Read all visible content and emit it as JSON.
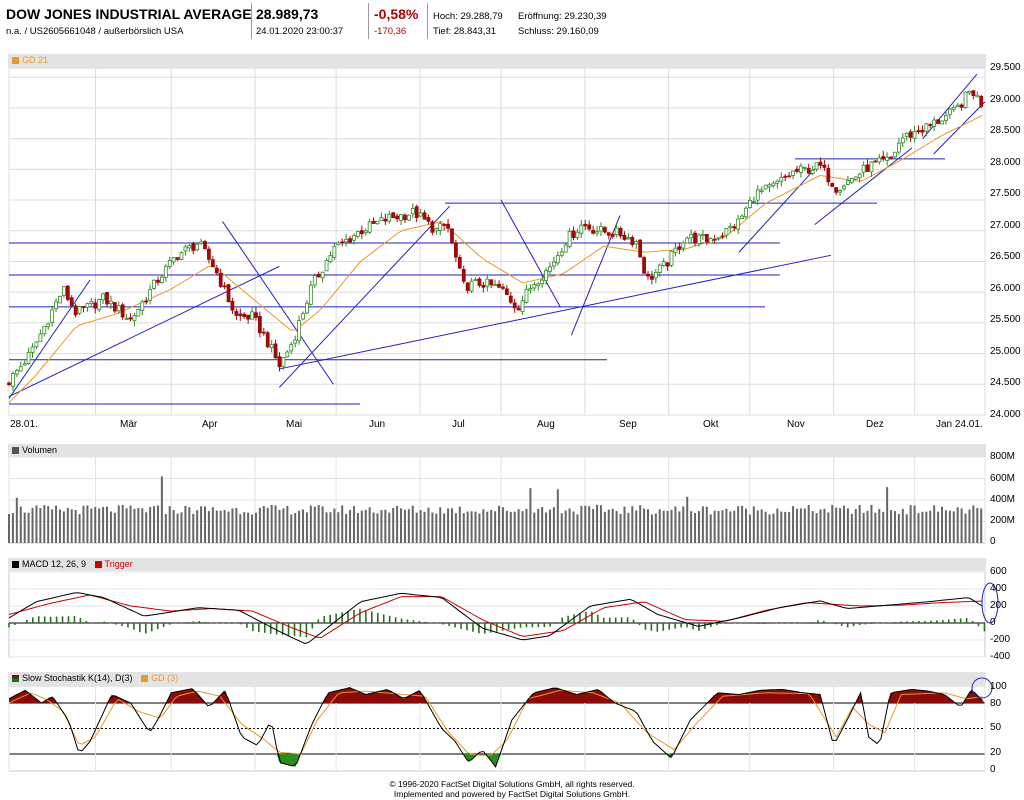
{
  "header": {
    "title": "DOW JONES INDUSTRIAL AVERAGE",
    "subtitle": "n.a. / US2605661048 / außerbörslich USA",
    "price": "28.989,73",
    "datetime": "24.01.2020 23:00:37",
    "change_pct": "-0,58%",
    "change_abs": "-170,36",
    "high_label": "Hoch: 29.288,79",
    "low_label": "Tief: 28.843,31",
    "open_label": "Eröffnung: 29.230,39",
    "close_label": "Schluss: 29.160,09"
  },
  "colors": {
    "up": "#2e8b22",
    "down": "#9e0b0b",
    "ma": "#e69a28",
    "trend": "#2222bb",
    "macd": "#000000",
    "trigger": "#cc0000",
    "hist": "#2a6e22",
    "stoch_fill": "#8b0a0a"
  },
  "footer": {
    "line1": "© 1996-2020 FactSet Digital Solutions GmbH, all rights reserved.",
    "line2": "Implemented and powered by FactSet Digital Solutions GmbH."
  },
  "chart_data": [
    {
      "type": "candlestick",
      "legend": "GD 21",
      "x_tick_labels": [
        "28.01.",
        "Mär",
        "Apr",
        "Mai",
        "Jun",
        "Jul",
        "Aug",
        "Sep",
        "Okt",
        "Nov",
        "Dez",
        "Jan 24.01."
      ],
      "y_ticks": [
        29500,
        29000,
        28500,
        28000,
        27500,
        27000,
        26500,
        26000,
        25500,
        25000,
        24500,
        24000
      ],
      "y_tick_labels": [
        "29.500",
        "29.000",
        "28.500",
        "28.000",
        "27.500",
        "27.000",
        "26.500",
        "26.000",
        "25.500",
        "25.000",
        "24.500",
        "24.000"
      ],
      "ylim": [
        24000,
        29650
      ],
      "x_range_days": [
        0,
        361
      ],
      "anchors": [
        [
          0,
          24550
        ],
        [
          8,
          25000
        ],
        [
          20,
          26050
        ],
        [
          25,
          25650
        ],
        [
          35,
          25900
        ],
        [
          45,
          25550
        ],
        [
          55,
          26200
        ],
        [
          62,
          26600
        ],
        [
          70,
          26800
        ],
        [
          76,
          26400
        ],
        [
          84,
          25600
        ],
        [
          90,
          25600
        ],
        [
          95,
          25250
        ],
        [
          100,
          24800
        ],
        [
          105,
          25200
        ],
        [
          112,
          26100
        ],
        [
          120,
          26700
        ],
        [
          130,
          27000
        ],
        [
          140,
          27200
        ],
        [
          150,
          27300
        ],
        [
          158,
          27000
        ],
        [
          162,
          27100
        ],
        [
          168,
          26100
        ],
        [
          175,
          26150
        ],
        [
          182,
          26050
        ],
        [
          188,
          25750
        ],
        [
          194,
          26150
        ],
        [
          200,
          26400
        ],
        [
          206,
          26850
        ],
        [
          212,
          27100
        ],
        [
          218,
          27000
        ],
        [
          226,
          26950
        ],
        [
          232,
          26820
        ],
        [
          236,
          26200
        ],
        [
          243,
          26450
        ],
        [
          250,
          26900
        ],
        [
          258,
          26850
        ],
        [
          264,
          26950
        ],
        [
          270,
          27150
        ],
        [
          276,
          27600
        ],
        [
          282,
          27700
        ],
        [
          290,
          27950
        ],
        [
          300,
          28050
        ],
        [
          306,
          27700
        ],
        [
          312,
          27850
        ],
        [
          318,
          28050
        ],
        [
          326,
          28150
        ],
        [
          330,
          28500
        ],
        [
          340,
          28700
        ],
        [
          350,
          28950
        ],
        [
          356,
          29300
        ],
        [
          361,
          28990
        ]
      ],
      "ma_anchors": [
        [
          0,
          24200
        ],
        [
          10,
          24650
        ],
        [
          25,
          25450
        ],
        [
          40,
          25650
        ],
        [
          60,
          26050
        ],
        [
          75,
          26450
        ],
        [
          90,
          25900
        ],
        [
          105,
          25350
        ],
        [
          115,
          25700
        ],
        [
          130,
          26500
        ],
        [
          145,
          27000
        ],
        [
          160,
          27150
        ],
        [
          175,
          26550
        ],
        [
          190,
          26150
        ],
        [
          205,
          26300
        ],
        [
          220,
          26750
        ],
        [
          235,
          26650
        ],
        [
          250,
          26700
        ],
        [
          265,
          26900
        ],
        [
          280,
          27450
        ],
        [
          300,
          27900
        ],
        [
          315,
          27800
        ],
        [
          330,
          28150
        ],
        [
          345,
          28550
        ],
        [
          361,
          28900
        ]
      ],
      "horizontal_lines": [
        26800,
        26280,
        25760,
        24900,
        24180,
        27450,
        28170
      ],
      "trend_lines": [
        [
          [
            0,
            24270
          ],
          [
            30,
            26200
          ]
        ],
        [
          [
            0,
            24300
          ],
          [
            100,
            26420
          ]
        ],
        [
          [
            79,
            27150
          ],
          [
            120,
            24500
          ]
        ],
        [
          [
            100,
            24450
          ],
          [
            163,
            27400
          ]
        ],
        [
          [
            100,
            24750
          ],
          [
            304,
            26600
          ]
        ],
        [
          [
            182,
            27500
          ],
          [
            204,
            25750
          ]
        ],
        [
          [
            208,
            25300
          ],
          [
            226,
            27250
          ]
        ],
        [
          [
            270,
            26650
          ],
          [
            300,
            28100
          ]
        ],
        [
          [
            298,
            27100
          ],
          [
            334,
            28350
          ]
        ],
        [
          [
            338,
            28500
          ],
          [
            358,
            29550
          ]
        ],
        [
          [
            342,
            28250
          ],
          [
            361,
            29100
          ]
        ]
      ]
    },
    {
      "type": "bar",
      "title": "Volumen",
      "y_tick_labels": [
        "800M",
        "600M",
        "400M",
        "200M",
        "0"
      ],
      "ylim": [
        0,
        800
      ],
      "unit": "M",
      "baseline": 310,
      "spikes": [
        [
          2,
          420
        ],
        [
          39,
          620
        ],
        [
          133,
          510
        ],
        [
          140,
          500
        ],
        [
          173,
          430
        ],
        [
          224,
          520
        ],
        [
          326,
          600
        ]
      ]
    },
    {
      "type": "line",
      "title": "MACD 12, 26, 9",
      "series_labels": [
        "MACD 12, 26, 9",
        "Trigger"
      ],
      "y_tick_labels": [
        "600",
        "400",
        "200",
        "0",
        "-200",
        "-400"
      ],
      "ylim": [
        -400,
        600
      ],
      "macd": [
        [
          0,
          60
        ],
        [
          10,
          250
        ],
        [
          25,
          360
        ],
        [
          35,
          300
        ],
        [
          50,
          80
        ],
        [
          70,
          180
        ],
        [
          85,
          150
        ],
        [
          100,
          -100
        ],
        [
          110,
          -250
        ],
        [
          120,
          0
        ],
        [
          130,
          250
        ],
        [
          145,
          350
        ],
        [
          160,
          300
        ],
        [
          175,
          -60
        ],
        [
          190,
          -200
        ],
        [
          200,
          -150
        ],
        [
          215,
          200
        ],
        [
          230,
          280
        ],
        [
          240,
          100
        ],
        [
          255,
          -40
        ],
        [
          270,
          60
        ],
        [
          285,
          180
        ],
        [
          300,
          260
        ],
        [
          310,
          170
        ],
        [
          325,
          210
        ],
        [
          340,
          250
        ],
        [
          355,
          300
        ],
        [
          361,
          180
        ]
      ],
      "trigger": [
        [
          0,
          100
        ],
        [
          15,
          230
        ],
        [
          30,
          330
        ],
        [
          45,
          200
        ],
        [
          60,
          140
        ],
        [
          75,
          170
        ],
        [
          90,
          140
        ],
        [
          105,
          -60
        ],
        [
          115,
          -180
        ],
        [
          130,
          120
        ],
        [
          145,
          310
        ],
        [
          160,
          310
        ],
        [
          175,
          40
        ],
        [
          190,
          -160
        ],
        [
          205,
          -90
        ],
        [
          220,
          180
        ],
        [
          235,
          250
        ],
        [
          250,
          40
        ],
        [
          265,
          20
        ],
        [
          280,
          150
        ],
        [
          295,
          240
        ],
        [
          315,
          200
        ],
        [
          330,
          210
        ],
        [
          345,
          240
        ],
        [
          361,
          260
        ]
      ]
    },
    {
      "type": "line",
      "title": "Slow Stochastik K(14), D(3)",
      "series_labels": [
        "Slow Stochastik K(14), D(3)",
        "GD (3)"
      ],
      "y_tick_labels": [
        "100",
        "80",
        "50",
        "20",
        "0"
      ],
      "ylim": [
        0,
        100
      ],
      "k": [
        [
          0,
          85
        ],
        [
          6,
          95
        ],
        [
          12,
          80
        ],
        [
          16,
          88
        ],
        [
          22,
          60
        ],
        [
          26,
          20
        ],
        [
          30,
          35
        ],
        [
          38,
          90
        ],
        [
          45,
          80
        ],
        [
          52,
          45
        ],
        [
          55,
          60
        ],
        [
          60,
          92
        ],
        [
          68,
          97
        ],
        [
          74,
          75
        ],
        [
          80,
          95
        ],
        [
          86,
          40
        ],
        [
          92,
          30
        ],
        [
          97,
          60
        ],
        [
          100,
          10
        ],
        [
          106,
          5
        ],
        [
          112,
          55
        ],
        [
          118,
          92
        ],
        [
          126,
          98
        ],
        [
          132,
          90
        ],
        [
          140,
          96
        ],
        [
          146,
          85
        ],
        [
          152,
          95
        ],
        [
          160,
          50
        ],
        [
          165,
          35
        ],
        [
          170,
          10
        ],
        [
          175,
          25
        ],
        [
          180,
          5
        ],
        [
          186,
          60
        ],
        [
          194,
          92
        ],
        [
          202,
          98
        ],
        [
          210,
          90
        ],
        [
          218,
          96
        ],
        [
          224,
          80
        ],
        [
          232,
          70
        ],
        [
          238,
          35
        ],
        [
          245,
          15
        ],
        [
          252,
          60
        ],
        [
          262,
          92
        ],
        [
          270,
          90
        ],
        [
          278,
          95
        ],
        [
          286,
          96
        ],
        [
          294,
          92
        ],
        [
          300,
          90
        ],
        [
          305,
          30
        ],
        [
          310,
          60
        ],
        [
          315,
          92
        ],
        [
          318,
          40
        ],
        [
          322,
          30
        ],
        [
          326,
          92
        ],
        [
          334,
          96
        ],
        [
          340,
          94
        ],
        [
          346,
          90
        ],
        [
          352,
          75
        ],
        [
          356,
          96
        ],
        [
          361,
          80
        ]
      ],
      "d": [
        [
          0,
          80
        ],
        [
          8,
          92
        ],
        [
          14,
          84
        ],
        [
          20,
          70
        ],
        [
          26,
          30
        ],
        [
          32,
          40
        ],
        [
          40,
          85
        ],
        [
          48,
          70
        ],
        [
          56,
          62
        ],
        [
          62,
          88
        ],
        [
          70,
          94
        ],
        [
          78,
          88
        ],
        [
          86,
          55
        ],
        [
          94,
          38
        ],
        [
          100,
          22
        ],
        [
          108,
          20
        ],
        [
          114,
          60
        ],
        [
          122,
          92
        ],
        [
          132,
          94
        ],
        [
          146,
          90
        ],
        [
          154,
          88
        ],
        [
          162,
          48
        ],
        [
          170,
          20
        ],
        [
          178,
          18
        ],
        [
          184,
          35
        ],
        [
          192,
          85
        ],
        [
          204,
          95
        ],
        [
          216,
          92
        ],
        [
          226,
          80
        ],
        [
          236,
          45
        ],
        [
          246,
          25
        ],
        [
          254,
          55
        ],
        [
          264,
          88
        ],
        [
          280,
          92
        ],
        [
          296,
          91
        ],
        [
          306,
          40
        ],
        [
          312,
          75
        ],
        [
          318,
          55
        ],
        [
          324,
          45
        ],
        [
          330,
          90
        ],
        [
          346,
          92
        ],
        [
          354,
          85
        ],
        [
          361,
          88
        ]
      ]
    }
  ]
}
